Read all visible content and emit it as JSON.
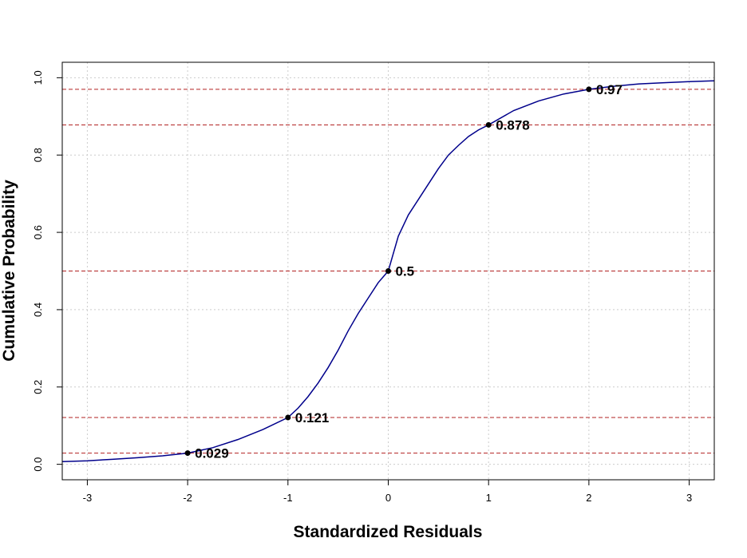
{
  "chart_data": {
    "type": "line",
    "title": "",
    "xlabel": "Standardized Residuals",
    "ylabel": "Cumulative Probability",
    "xlim": [
      -3.25,
      3.25
    ],
    "ylim": [
      -0.04,
      1.04
    ],
    "x_ticks": [
      -3,
      -2,
      -1,
      0,
      1,
      2,
      3
    ],
    "y_ticks": [
      0.0,
      0.2,
      0.4,
      0.6,
      0.8,
      1.0
    ],
    "x_tick_labels": [
      "-3",
      "-2",
      "-1",
      "0",
      "1",
      "2",
      "3"
    ],
    "y_tick_labels": [
      "0.0",
      "0.2",
      "0.4",
      "0.6",
      "0.8",
      "1.0"
    ],
    "grid": true,
    "series": [
      {
        "color": "#00008b",
        "x": [
          -3.25,
          -3.0,
          -2.75,
          -2.5,
          -2.25,
          -2.0,
          -1.75,
          -1.5,
          -1.25,
          -1.0,
          -0.9,
          -0.8,
          -0.7,
          -0.6,
          -0.5,
          -0.4,
          -0.3,
          -0.2,
          -0.1,
          0.0,
          0.1,
          0.2,
          0.3,
          0.4,
          0.5,
          0.6,
          0.7,
          0.8,
          0.9,
          1.0,
          1.25,
          1.5,
          1.75,
          2.0,
          2.25,
          2.5,
          2.75,
          3.0,
          3.25
        ],
        "y": [
          0.007,
          0.009,
          0.013,
          0.017,
          0.022,
          0.029,
          0.043,
          0.064,
          0.09,
          0.121,
          0.145,
          0.175,
          0.21,
          0.25,
          0.295,
          0.345,
          0.39,
          0.43,
          0.47,
          0.5,
          0.59,
          0.645,
          0.685,
          0.725,
          0.765,
          0.8,
          0.825,
          0.848,
          0.865,
          0.878,
          0.915,
          0.94,
          0.958,
          0.97,
          0.978,
          0.984,
          0.987,
          0.99,
          0.992
        ]
      }
    ],
    "points": [
      {
        "x": -2,
        "y": 0.029,
        "label": "0.029"
      },
      {
        "x": -1,
        "y": 0.121,
        "label": "0.121"
      },
      {
        "x": 0,
        "y": 0.5,
        "label": "0.5"
      },
      {
        "x": 1,
        "y": 0.878,
        "label": "0.878"
      },
      {
        "x": 2,
        "y": 0.97,
        "label": "0.97"
      }
    ],
    "reference_line_color": "#b22222",
    "grid_color": "#cccccc",
    "point_color": "#000000"
  }
}
